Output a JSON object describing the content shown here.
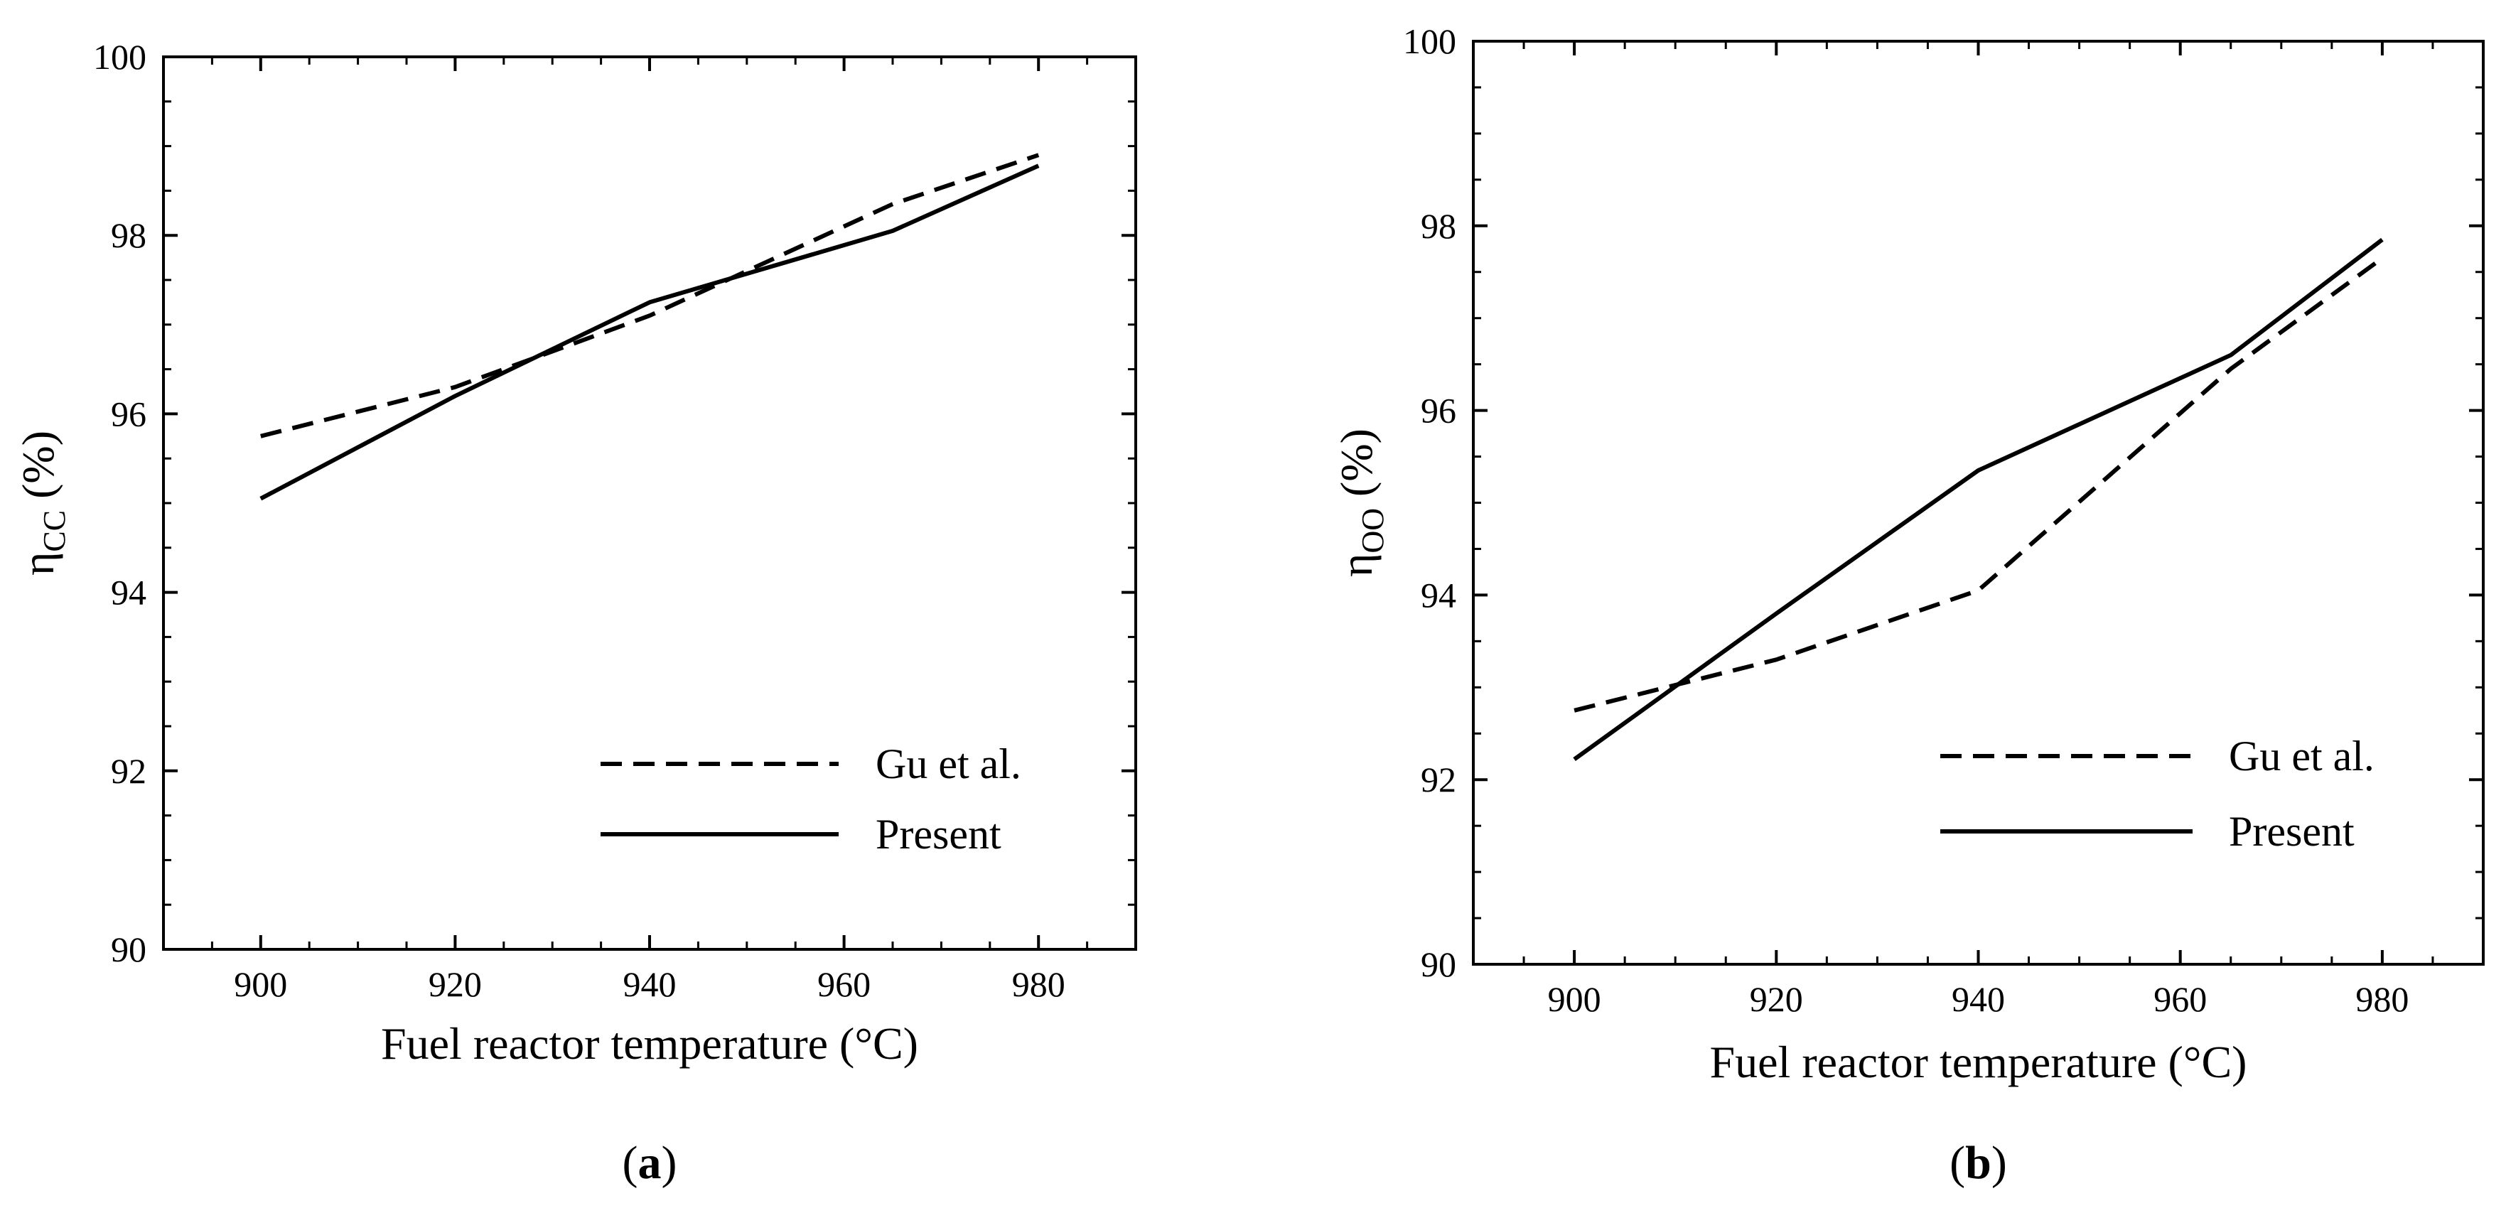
{
  "chart_data": [
    {
      "type": "line",
      "panel_label": {
        "open": "(",
        "letter": "a",
        "close": ")"
      },
      "xlabel": "Fuel reactor temperature (°C)",
      "ylabel": {
        "main": "η",
        "sub": "CC",
        "unit": " (%)"
      },
      "xlim": [
        890,
        990
      ],
      "ylim": [
        90,
        100
      ],
      "xticks": [
        900,
        920,
        940,
        960,
        980
      ],
      "yticks": [
        90,
        92,
        94,
        96,
        98,
        100
      ],
      "legend_position": "bottom-right",
      "series": [
        {
          "name": "Gu et al.",
          "style": "dashed",
          "x": [
            900,
            920,
            940,
            965,
            980
          ],
          "y": [
            95.75,
            96.3,
            97.1,
            98.35,
            98.9
          ]
        },
        {
          "name": "Present",
          "style": "solid",
          "x": [
            900,
            920,
            940,
            965,
            980
          ],
          "y": [
            95.05,
            96.2,
            97.25,
            98.05,
            98.78
          ]
        }
      ]
    },
    {
      "type": "line",
      "panel_label": {
        "open": "(",
        "letter": "b",
        "close": ")"
      },
      "xlabel": "Fuel reactor temperature (°C)",
      "ylabel": {
        "main": "η",
        "sub": "OO",
        "unit": " (%)"
      },
      "xlim": [
        890,
        990
      ],
      "ylim": [
        90,
        100
      ],
      "xticks": [
        900,
        920,
        940,
        960,
        980
      ],
      "yticks": [
        90,
        92,
        94,
        96,
        98,
        100
      ],
      "legend_position": "bottom-right",
      "series": [
        {
          "name": "Gu et al.",
          "style": "dashed",
          "x": [
            900,
            920,
            940,
            965,
            980
          ],
          "y": [
            92.75,
            93.3,
            94.05,
            96.45,
            97.65
          ]
        },
        {
          "name": "Present",
          "style": "solid",
          "x": [
            900,
            920,
            940,
            965,
            980
          ],
          "y": [
            92.22,
            93.8,
            95.35,
            96.6,
            97.85
          ]
        }
      ]
    }
  ]
}
